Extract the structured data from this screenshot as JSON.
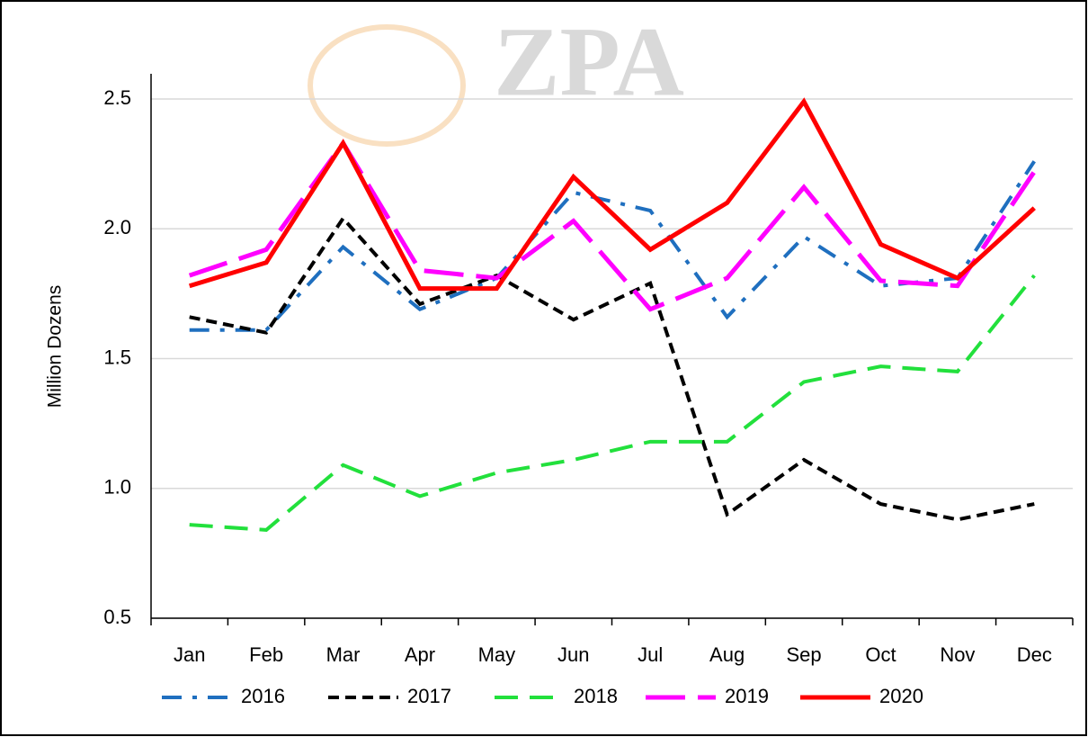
{
  "chart_data": {
    "type": "line",
    "watermark": "ZPA",
    "ylabel": "Million Dozens",
    "categories": [
      "Jan",
      "Feb",
      "Mar",
      "Apr",
      "May",
      "Jun",
      "Jul",
      "Aug",
      "Sep",
      "Oct",
      "Nov",
      "Dec"
    ],
    "series": [
      {
        "name": "2016",
        "color": "#1f6fbf",
        "dash": "dashdot",
        "values": [
          1.61,
          1.61,
          1.93,
          1.69,
          1.81,
          2.14,
          2.07,
          1.66,
          1.97,
          1.78,
          1.81,
          2.26
        ]
      },
      {
        "name": "2017",
        "color": "#000000",
        "dash": "dash",
        "values": [
          1.66,
          1.6,
          2.04,
          1.71,
          1.82,
          1.65,
          1.79,
          0.9,
          1.11,
          0.94,
          0.88,
          0.94
        ]
      },
      {
        "name": "2018",
        "color": "#22e03c",
        "dash": "longdash",
        "values": [
          0.86,
          0.84,
          1.09,
          0.97,
          1.06,
          1.11,
          1.18,
          1.18,
          1.41,
          1.47,
          1.45,
          1.82
        ]
      },
      {
        "name": "2019",
        "color": "#ff00ff",
        "dash": "longdash",
        "values": [
          1.82,
          1.92,
          2.33,
          1.84,
          1.81,
          2.03,
          1.69,
          1.81,
          2.16,
          1.8,
          1.78,
          2.22
        ]
      },
      {
        "name": "2020",
        "color": "#ff0000",
        "dash": "solid",
        "values": [
          1.78,
          1.87,
          2.33,
          1.77,
          1.77,
          2.2,
          1.92,
          2.1,
          2.49,
          1.94,
          1.81,
          2.08
        ]
      }
    ],
    "ylim": [
      0.5,
      2.5
    ],
    "yticks": [
      0.5,
      {
        "value": 1.0,
        "label": "1.0"
      },
      1.5,
      {
        "value": 2.0,
        "label": "2.0"
      },
      2.5
    ],
    "grid": true,
    "legend": "bottom"
  }
}
